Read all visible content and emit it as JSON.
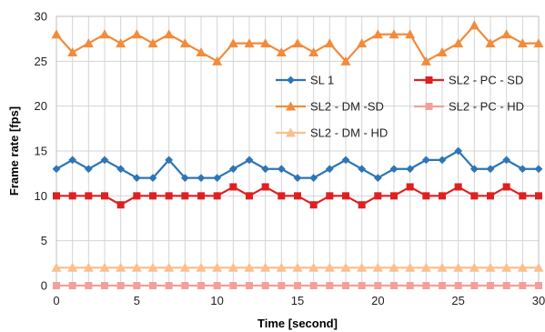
{
  "chart_data": {
    "type": "line",
    "title": "",
    "xlabel": "Time [second]",
    "ylabel": "Frame rate [fps]",
    "xlim": [
      0,
      30
    ],
    "ylim": [
      0,
      30
    ],
    "xticks": [
      "0",
      "5",
      "10",
      "15",
      "20",
      "25",
      "30"
    ],
    "yticks": [
      "0",
      "5",
      "10",
      "15",
      "20",
      "25",
      "30"
    ],
    "grid": true,
    "legend_position": "center-right",
    "x": [
      0,
      1,
      2,
      3,
      4,
      5,
      6,
      7,
      8,
      9,
      10,
      11,
      12,
      13,
      14,
      15,
      16,
      17,
      18,
      19,
      20,
      21,
      22,
      23,
      24,
      25,
      26,
      27,
      28,
      29,
      30
    ],
    "series": [
      {
        "name": "SL 1",
        "color": "#2E75B6",
        "marker": "diamond",
        "values": [
          13,
          14,
          13,
          14,
          13,
          12,
          12,
          14,
          12,
          12,
          12,
          13,
          14,
          13,
          13,
          12,
          12,
          13,
          14,
          13,
          12,
          13,
          13,
          14,
          14,
          15,
          13,
          13,
          14,
          13,
          13
        ]
      },
      {
        "name": "SL2 - PC - SD",
        "color": "#E02020",
        "marker": "square",
        "values": [
          10,
          10,
          10,
          10,
          9,
          10,
          10,
          10,
          10,
          10,
          10,
          11,
          10,
          11,
          10,
          10,
          9,
          10,
          10,
          9,
          10,
          10,
          11,
          10,
          10,
          11,
          10,
          10,
          11,
          10,
          10
        ]
      },
      {
        "name": "SL2 - DM -SD",
        "color": "#F28B3B",
        "marker": "triangle",
        "values": [
          28,
          26,
          27,
          28,
          27,
          28,
          27,
          28,
          27,
          26,
          25,
          27,
          27,
          27,
          26,
          27,
          26,
          27,
          25,
          27,
          28,
          28,
          28,
          25,
          26,
          27,
          29,
          27,
          28,
          27,
          27
        ]
      },
      {
        "name": "SL2 - PC - HD",
        "color": "#F4A09A",
        "marker": "square",
        "values": [
          0,
          0,
          0,
          0,
          0,
          0,
          0,
          0,
          0,
          0,
          0,
          0,
          0,
          0,
          0,
          0,
          0,
          0,
          0,
          0,
          0,
          0,
          0,
          0,
          0,
          0,
          0,
          0,
          0,
          0,
          0
        ]
      },
      {
        "name": "SL2 - DM - HD",
        "color": "#F9C08E",
        "marker": "triangle",
        "values": [
          2,
          2,
          2,
          2,
          2,
          2,
          2,
          2,
          2,
          2,
          2,
          2,
          2,
          2,
          2,
          2,
          2,
          2,
          2,
          2,
          2,
          2,
          2,
          2,
          2,
          2,
          2,
          2,
          2,
          2,
          2
        ]
      }
    ]
  }
}
